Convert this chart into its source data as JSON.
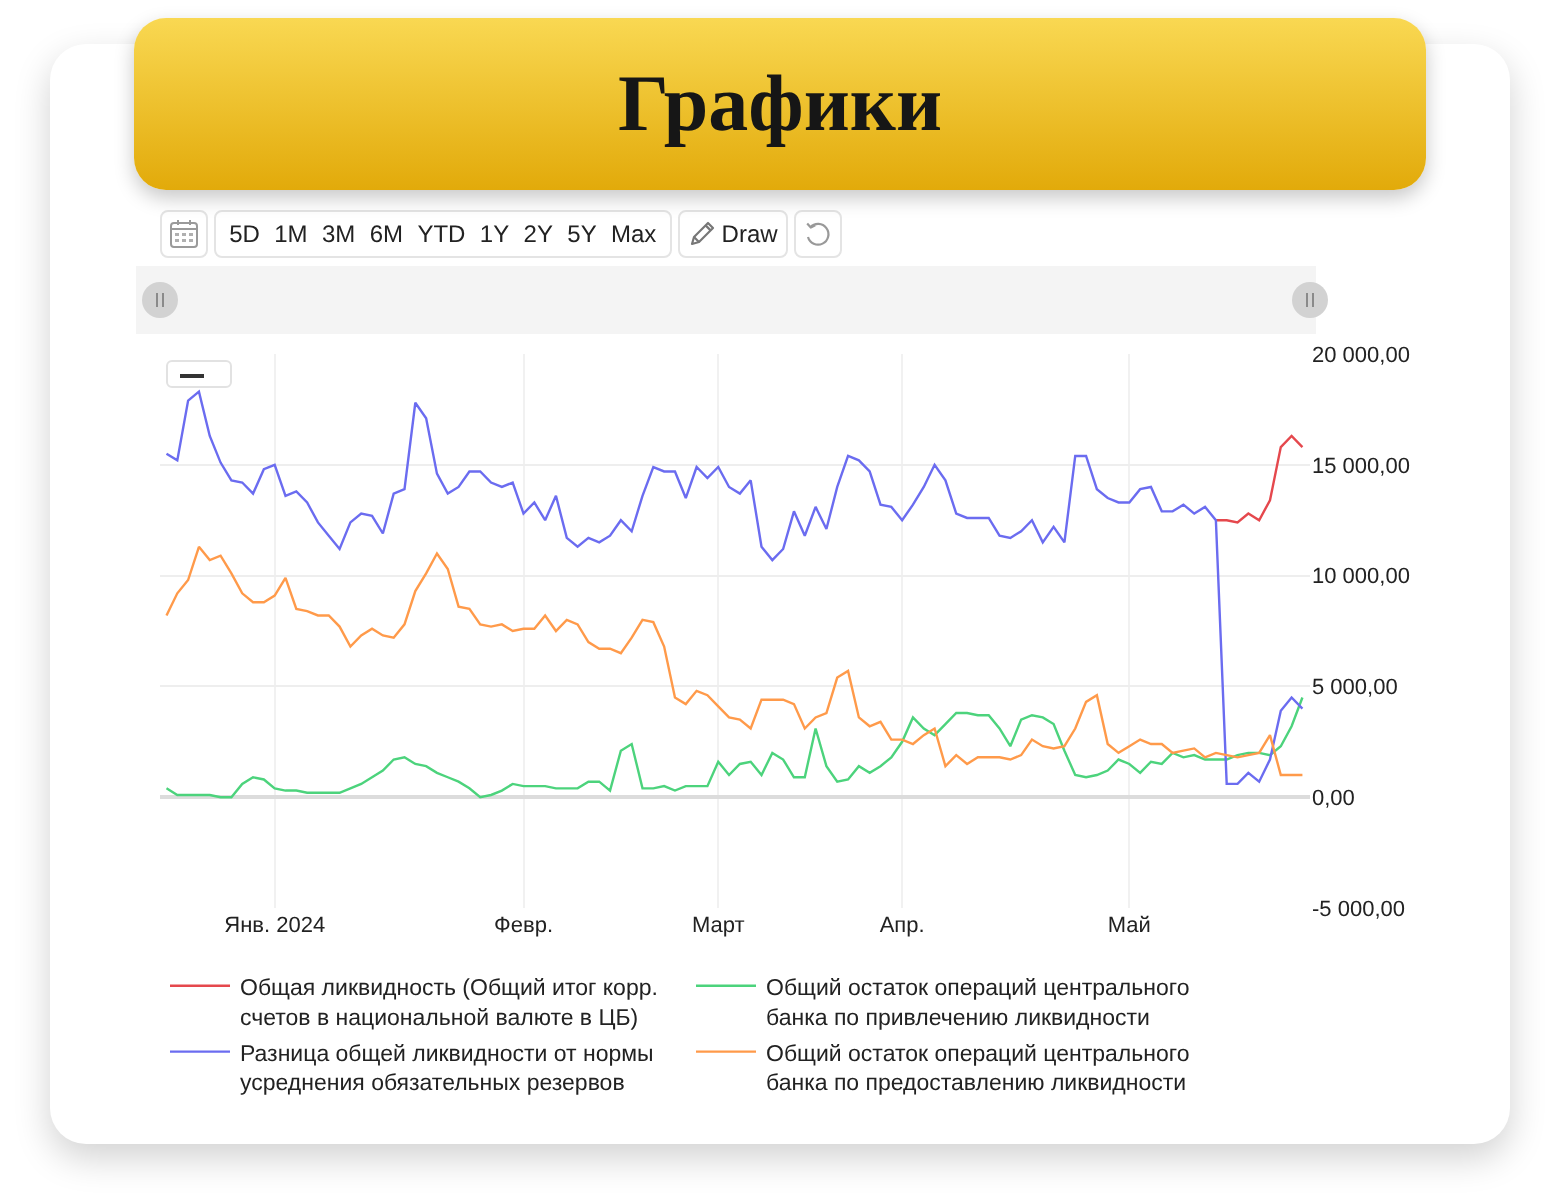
{
  "chart_data": {
    "type": "line",
    "title": "Графики",
    "annotations": [
      "5D",
      "1M",
      "3M",
      "6M",
      "YTD",
      "1Y",
      "2Y",
      "5Y",
      "Max",
      "Draw"
    ],
    "categories": [
      null,
      null,
      null,
      null,
      null,
      null,
      null,
      null,
      null,
      null,
      "Янв. 2024",
      null,
      null,
      null,
      null,
      null,
      null,
      null,
      null,
      null,
      null,
      null,
      null,
      null,
      null,
      null,
      null,
      null,
      null,
      null,
      null,
      null,
      null,
      "Февр.",
      null,
      null,
      null,
      null,
      null,
      null,
      null,
      null,
      null,
      null,
      null,
      null,
      null,
      null,
      null,
      null,
      null,
      "Март",
      null,
      null,
      null,
      null,
      null,
      null,
      null,
      null,
      null,
      null,
      null,
      null,
      null,
      null,
      null,
      null,
      "Апр.",
      null,
      null,
      null,
      null,
      null,
      null,
      null,
      null,
      null,
      null,
      null,
      null,
      null,
      null,
      null,
      null,
      null,
      null,
      null,
      null,
      "Май",
      null,
      null,
      null,
      null,
      null,
      null,
      null,
      null,
      null,
      null,
      null,
      null,
      null,
      null,
      null,
      null
    ],
    "ylim": [
      -5000,
      20000
    ],
    "yticks": [
      {
        "value": -5000,
        "label": "-5 000,00"
      },
      {
        "value": 0,
        "label": "0,00"
      },
      {
        "value": 5000,
        "label": "5 000,00"
      },
      {
        "value": 10000,
        "label": "10 000,00"
      },
      {
        "value": 15000,
        "label": "15 000,00"
      },
      {
        "value": 20000,
        "label": "20 000,00"
      }
    ],
    "grid": true,
    "legend": "bottom",
    "series": [
      {
        "name": "Общая ликвидность (Общий итог корр. счетов в национальной валюте в ЦБ)",
        "color": "#e5484d",
        "values": [
          null,
          null,
          null,
          null,
          null,
          null,
          null,
          null,
          null,
          null,
          null,
          null,
          null,
          null,
          null,
          null,
          null,
          null,
          null,
          null,
          null,
          null,
          null,
          null,
          null,
          null,
          null,
          null,
          null,
          null,
          null,
          null,
          null,
          null,
          null,
          null,
          null,
          null,
          null,
          null,
          null,
          null,
          null,
          null,
          null,
          null,
          null,
          null,
          null,
          null,
          null,
          null,
          null,
          null,
          null,
          null,
          null,
          null,
          null,
          null,
          null,
          null,
          null,
          null,
          null,
          null,
          null,
          null,
          null,
          null,
          null,
          null,
          null,
          null,
          null,
          null,
          null,
          null,
          null,
          null,
          null,
          null,
          null,
          null,
          null,
          null,
          null,
          null,
          null,
          null,
          null,
          null,
          null,
          null,
          null,
          null,
          null,
          12500,
          12500,
          12400,
          12800,
          12500,
          13400,
          15800,
          16300,
          15800
        ]
      },
      {
        "name": "Общий остаток операций центрального банка по привлечению ликвидности",
        "color": "#4cd37c",
        "values": [
          400,
          100,
          100,
          100,
          100,
          0,
          0,
          600,
          900,
          800,
          400,
          300,
          300,
          200,
          200,
          200,
          200,
          400,
          600,
          900,
          1200,
          1700,
          1800,
          1500,
          1400,
          1100,
          900,
          700,
          400,
          0,
          100,
          300,
          600,
          500,
          500,
          500,
          400,
          400,
          400,
          700,
          700,
          300,
          2100,
          2400,
          400,
          400,
          500,
          300,
          500,
          500,
          500,
          1600,
          1000,
          1500,
          1600,
          1000,
          2000,
          1700,
          900,
          900,
          3100,
          1400,
          700,
          800,
          1400,
          1100,
          1400,
          1800,
          2500,
          3600,
          3100,
          2800,
          3300,
          3800,
          3800,
          3700,
          3700,
          3100,
          2300,
          3500,
          3700,
          3600,
          3300,
          2100,
          1000,
          900,
          1000,
          1200,
          1700,
          1500,
          1100,
          1600,
          1500,
          2000,
          1800,
          1900,
          1700,
          1700,
          1700,
          1900,
          2000,
          2000,
          1900,
          2300,
          3200,
          4500
        ]
      },
      {
        "name": "Разница общей ликвидности от нормы усреднения обязательных резервов",
        "color": "#6b6cf0",
        "values": [
          15500,
          15200,
          17900,
          18300,
          16300,
          15100,
          14300,
          14200,
          13700,
          14800,
          15000,
          13600,
          13800,
          13300,
          12400,
          11800,
          11200,
          12400,
          12800,
          12700,
          11900,
          13700,
          13900,
          17800,
          17100,
          14600,
          13700,
          14000,
          14700,
          14700,
          14200,
          14000,
          14200,
          12800,
          13300,
          12500,
          13600,
          11700,
          11300,
          11700,
          11500,
          11800,
          12500,
          12000,
          13600,
          14900,
          14700,
          14700,
          13500,
          14900,
          14400,
          14900,
          14000,
          13700,
          14300,
          11300,
          10700,
          11200,
          12900,
          11800,
          13100,
          12100,
          14000,
          15400,
          15200,
          14700,
          13200,
          13100,
          12500,
          13200,
          14000,
          15000,
          14300,
          12800,
          12600,
          12600,
          12600,
          11800,
          11700,
          12000,
          12500,
          11500,
          12200,
          11500,
          15400,
          15400,
          13900,
          13500,
          13300,
          13300,
          13900,
          14000,
          12900,
          12900,
          13200,
          12800,
          13100,
          12500,
          600,
          600,
          1100,
          700,
          1700,
          3900,
          4500,
          4000
        ]
      },
      {
        "name": "Общий остаток операций центрального банка по предоставлению ликвидности",
        "color": "#ff9a4a",
        "values": [
          8200,
          9200,
          9800,
          11300,
          10700,
          10900,
          10100,
          9200,
          8800,
          8800,
          9100,
          9900,
          8500,
          8400,
          8200,
          8200,
          7700,
          6800,
          7300,
          7600,
          7300,
          7200,
          7800,
          9300,
          10100,
          11000,
          10300,
          8600,
          8500,
          7800,
          7700,
          7800,
          7500,
          7600,
          7600,
          8200,
          7500,
          8000,
          7800,
          7000,
          6700,
          6700,
          6500,
          7200,
          8000,
          7900,
          6800,
          4500,
          4200,
          4800,
          4600,
          4100,
          3600,
          3500,
          3100,
          4400,
          4400,
          4400,
          4200,
          3100,
          3600,
          3800,
          5400,
          5700,
          3600,
          3200,
          3400,
          2600,
          2600,
          2400,
          2800,
          3100,
          1400,
          1900,
          1500,
          1800,
          1800,
          1800,
          1700,
          1900,
          2600,
          2300,
          2200,
          2300,
          3100,
          4300,
          4600,
          2400,
          2000,
          2300,
          2600,
          2400,
          2400,
          2000,
          2100,
          2200,
          1800,
          2000,
          1900,
          1800,
          1900,
          2000,
          2800,
          1000,
          1000,
          1000
        ]
      }
    ]
  }
}
